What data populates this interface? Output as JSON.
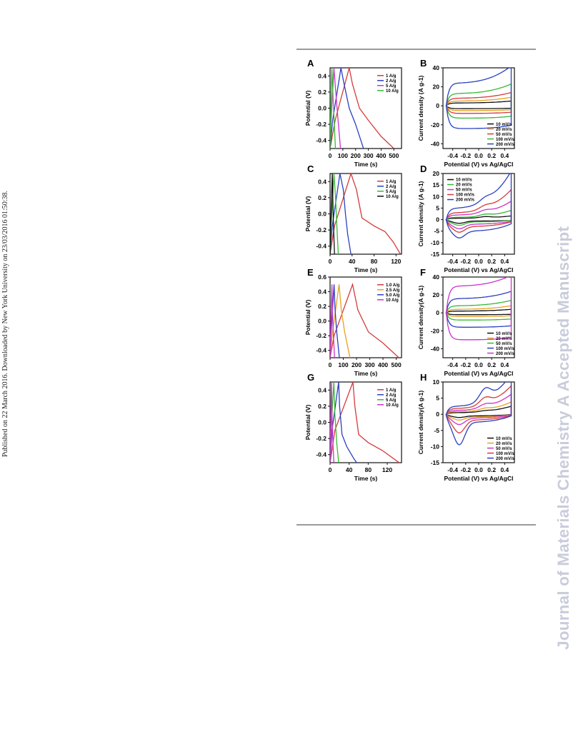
{
  "watermark": {
    "left": "Published on 22 March 2016. Downloaded by New York University on 23/03/2016 01:50:38.",
    "right": "Journal of Materials Chemistry A Accepted Manuscript"
  },
  "chart_data": [
    {
      "panel": "A",
      "type": "line",
      "xlabel": "Time (s)",
      "ylabel": "Potential (V)",
      "xlim": [
        0,
        560
      ],
      "ylim": [
        -0.5,
        0.5
      ],
      "xticks": [
        "0",
        "100",
        "200",
        "300",
        "400",
        "500"
      ],
      "yticks": [
        "0.4",
        "0.2",
        "0.0",
        "-0.2",
        "-0.4"
      ],
      "legend_position": "top-right",
      "series": [
        {
          "name": "1 A/g",
          "color": "#d63a3a",
          "x": [
            0,
            40,
            150,
            175,
            230,
            300,
            400,
            500
          ],
          "y": [
            -0.5,
            -0.15,
            0.5,
            0.3,
            0.0,
            -0.15,
            -0.35,
            -0.5
          ]
        },
        {
          "name": "2 A/g",
          "color": "#2a40c0",
          "x": [
            0,
            20,
            85,
            110,
            150,
            200,
            262
          ],
          "y": [
            -0.5,
            -0.15,
            0.5,
            0.3,
            0.0,
            -0.2,
            -0.5
          ]
        },
        {
          "name": "5 A/g",
          "color": "#cc33cc",
          "x": [
            0,
            8,
            30,
            42,
            60,
            82
          ],
          "y": [
            -0.5,
            -0.15,
            0.5,
            0.25,
            -0.1,
            -0.5
          ]
        },
        {
          "name": "10 A/g",
          "color": "#33bb33",
          "x": [
            0,
            4,
            14,
            20,
            30,
            42
          ],
          "y": [
            -0.5,
            -0.15,
            0.5,
            0.25,
            -0.1,
            -0.5
          ]
        }
      ]
    },
    {
      "panel": "B",
      "type": "line",
      "xlabel": "Potential (V) vs Ag/AgCl",
      "ylabel": "Current density (A g-1)",
      "xlim": [
        -0.55,
        0.55
      ],
      "ylim": [
        -45,
        40
      ],
      "xticks": [
        "-0.4",
        "-0.2",
        "0.0",
        "0.2",
        "0.4"
      ],
      "yticks": [
        "40",
        "20",
        "0",
        "-20",
        "-40"
      ],
      "legend_position": "bottom-right",
      "series": [
        {
          "name": "10 mV/s",
          "color": "#111111",
          "amplitude": 3,
          "tilt": 1,
          "peak": 0
        },
        {
          "name": "20 mV/s",
          "color": "#e8a020",
          "amplitude": 5,
          "tilt": 2,
          "peak": 0
        },
        {
          "name": "50 mV/s",
          "color": "#d63a3a",
          "amplitude": 8,
          "tilt": 3,
          "peak": 0
        },
        {
          "name": "100 mV/s",
          "color": "#33bb33",
          "amplitude": 13,
          "tilt": 5,
          "peak": 0
        },
        {
          "name": "200 mV/s",
          "color": "#2a40c0",
          "amplitude": 24,
          "tilt": 9,
          "peak": 0
        }
      ]
    },
    {
      "panel": "C",
      "type": "line",
      "xlabel": "Time (s)",
      "ylabel": "Potential (V)",
      "xlim": [
        0,
        130
      ],
      "ylim": [
        -0.5,
        0.5
      ],
      "xticks": [
        "0",
        "40",
        "80",
        "120"
      ],
      "yticks": [
        "0.4",
        "0.2",
        "0.0",
        "-0.2",
        "-0.4"
      ],
      "legend_position": "top-right",
      "series": [
        {
          "name": "1 A/g",
          "color": "#d63a3a",
          "x": [
            0,
            8,
            38,
            48,
            58,
            80,
            100,
            115,
            128
          ],
          "y": [
            -0.5,
            -0.15,
            0.5,
            0.3,
            -0.05,
            -0.15,
            -0.22,
            -0.35,
            -0.5
          ]
        },
        {
          "name": "2 A/g",
          "color": "#2a40c0",
          "x": [
            0,
            4,
            18,
            24,
            28,
            32,
            38
          ],
          "y": [
            -0.5,
            -0.15,
            0.5,
            0.3,
            0.0,
            -0.25,
            -0.5
          ]
        },
        {
          "name": "5 A/g",
          "color": "#33bb33",
          "x": [
            0,
            2,
            7,
            10,
            12,
            15
          ],
          "y": [
            -0.5,
            -0.15,
            0.5,
            0.2,
            -0.1,
            -0.5
          ]
        },
        {
          "name": "10 A/g",
          "color": "#111111",
          "x": [
            0,
            1,
            4,
            5,
            6,
            8
          ],
          "y": [
            -0.5,
            -0.15,
            0.5,
            0.2,
            -0.1,
            -0.5
          ]
        }
      ]
    },
    {
      "panel": "D",
      "type": "line",
      "xlabel": "Potential (V) vs Ag/AgCl",
      "ylabel": "Current density (A g-1)",
      "xlim": [
        -0.55,
        0.55
      ],
      "ylim": [
        -15,
        20
      ],
      "xticks": [
        "-0.4",
        "-0.2",
        "0.0",
        "0.2",
        "0.4"
      ],
      "yticks": [
        "20",
        "15",
        "10",
        "5",
        "0",
        "-5",
        "-10",
        "-15"
      ],
      "legend_position": "top-left",
      "series": [
        {
          "name": "10 mV/s",
          "color": "#111111",
          "amplitude": 0.6,
          "tilt": 0.5,
          "peak": 1
        },
        {
          "name": "20 mV/s",
          "color": "#33bb33",
          "amplitude": 1.0,
          "tilt": 1.5,
          "peak": 1.5
        },
        {
          "name": "50 mV/s",
          "color": "#cc33cc",
          "amplitude": 2.0,
          "tilt": 3,
          "peak": 2
        },
        {
          "name": "100 mV/s",
          "color": "#d63a3a",
          "amplitude": 3.0,
          "tilt": 5,
          "peak": 2.5
        },
        {
          "name": "200 mV/s",
          "color": "#2a40c0",
          "amplitude": 5.0,
          "tilt": 8,
          "peak": 3
        }
      ]
    },
    {
      "panel": "E",
      "type": "line",
      "xlabel": "Time (s)",
      "ylabel": "Potential (V)",
      "xlim": [
        0,
        540
      ],
      "ylim": [
        -0.5,
        0.6
      ],
      "xticks": [
        "0",
        "100",
        "200",
        "300",
        "400",
        "500"
      ],
      "yticks": [
        "0.6",
        "0.4",
        "0.2",
        "0.0",
        "-0.2",
        "-0.4"
      ],
      "legend_position": "top-right",
      "series": [
        {
          "name": "1.0 A/g",
          "color": "#d63a3a",
          "x": [
            0,
            30,
            170,
            210,
            290,
            400,
            520
          ],
          "y": [
            -0.5,
            -0.2,
            0.5,
            0.15,
            -0.15,
            -0.3,
            -0.5
          ]
        },
        {
          "name": "2.5 A/g",
          "color": "#e8a020",
          "x": [
            0,
            15,
            68,
            85,
            110,
            150
          ],
          "y": [
            -0.5,
            -0.2,
            0.5,
            0.15,
            -0.15,
            -0.5
          ]
        },
        {
          "name": "5.0 A/g",
          "color": "#2a40c0",
          "x": [
            0,
            6,
            30,
            38,
            50,
            70
          ],
          "y": [
            -0.5,
            -0.2,
            0.5,
            0.15,
            -0.15,
            -0.5
          ]
        },
        {
          "name": "10 A/g",
          "color": "#cc33cc",
          "x": [
            0,
            3,
            14,
            18,
            24,
            34
          ],
          "y": [
            -0.5,
            -0.2,
            0.5,
            0.15,
            -0.15,
            -0.5
          ]
        }
      ]
    },
    {
      "panel": "F",
      "type": "line",
      "xlabel": "Potential (V) vs Ag/AgCl",
      "ylabel": "Current density(A g-1)",
      "xlim": [
        -0.55,
        0.55
      ],
      "ylim": [
        -50,
        40
      ],
      "xticks": [
        "-0.4",
        "-0.2",
        "0.0",
        "0.2",
        "0.4"
      ],
      "yticks": [
        "40",
        "20",
        "0",
        "-20",
        "-40"
      ],
      "legend_position": "bottom-right",
      "series": [
        {
          "name": "10 mV/s",
          "color": "#111111",
          "amplitude": 2,
          "tilt": 1,
          "peak": 0
        },
        {
          "name": "20 mV/s",
          "color": "#e8a020",
          "amplitude": 4,
          "tilt": 2,
          "peak": 0
        },
        {
          "name": "50 mV/s",
          "color": "#33bb33",
          "amplitude": 8,
          "tilt": 3,
          "peak": 0
        },
        {
          "name": "100 mV/s",
          "color": "#2a40c0",
          "amplitude": 16,
          "tilt": 4,
          "peak": 0
        },
        {
          "name": "200 mV/s",
          "color": "#cc33cc",
          "amplitude": 30,
          "tilt": 6,
          "peak": 0
        }
      ]
    },
    {
      "panel": "G",
      "type": "line",
      "xlabel": "Time (s)",
      "ylabel": "Potential (V)",
      "xlim": [
        0,
        150
      ],
      "ylim": [
        -0.5,
        0.5
      ],
      "xticks": [
        "0",
        "40",
        "80",
        "120"
      ],
      "yticks": [
        "0.4",
        "0.2",
        "0.0",
        "-0.2",
        "-0.4"
      ],
      "legend_position": "top-right",
      "series": [
        {
          "name": "1 A/g",
          "color": "#d63a3a",
          "x": [
            0,
            10,
            48,
            52,
            60,
            80,
            110,
            145
          ],
          "y": [
            -0.5,
            -0.1,
            0.5,
            0.2,
            -0.15,
            -0.25,
            -0.35,
            -0.5
          ]
        },
        {
          "name": "2 A/g",
          "color": "#2a40c0",
          "x": [
            0,
            4,
            18,
            20,
            25,
            35,
            50,
            62
          ],
          "y": [
            -0.5,
            -0.1,
            0.5,
            0.2,
            -0.15,
            -0.3,
            -0.45,
            -0.55
          ]
        },
        {
          "name": "5 A/g",
          "color": "#33bb33",
          "x": [
            0,
            2,
            8,
            10,
            14,
            18
          ],
          "y": [
            -0.5,
            -0.1,
            0.5,
            0.1,
            -0.25,
            -0.5
          ]
        },
        {
          "name": "10 A/g",
          "color": "#cc33cc",
          "x": [
            0,
            1,
            3,
            4,
            6,
            8
          ],
          "y": [
            -0.5,
            -0.1,
            0.5,
            0.1,
            -0.25,
            -0.5
          ]
        }
      ]
    },
    {
      "panel": "H",
      "type": "line",
      "xlabel": "Potential (V) vs Ag/AgCl",
      "ylabel": "Current density(A g-1)",
      "xlim": [
        -0.55,
        0.55
      ],
      "ylim": [
        -15,
        10
      ],
      "xticks": [
        "-0.4",
        "-0.2",
        "0.0",
        "0.2",
        "0.4"
      ],
      "yticks": [
        "10",
        "5",
        "0",
        "-5",
        "-10",
        "-15"
      ],
      "legend_position": "bottom-right",
      "series": [
        {
          "name": "10 mV/s",
          "color": "#111111",
          "amplitude": 0.5,
          "tilt": 1,
          "peak": 0.5
        },
        {
          "name": "20 mV/s",
          "color": "#e8a020",
          "amplitude": 0.8,
          "tilt": 1.5,
          "peak": 1
        },
        {
          "name": "50 mV/s",
          "color": "#cc33cc",
          "amplitude": 1.2,
          "tilt": 2.5,
          "peak": 2
        },
        {
          "name": "100 mV/s",
          "color": "#d63a3a",
          "amplitude": 1.8,
          "tilt": 3.5,
          "peak": 4
        },
        {
          "name": "200 mV/s",
          "color": "#2a40c0",
          "amplitude": 2.5,
          "tilt": 5,
          "peak": 7
        }
      ]
    }
  ]
}
